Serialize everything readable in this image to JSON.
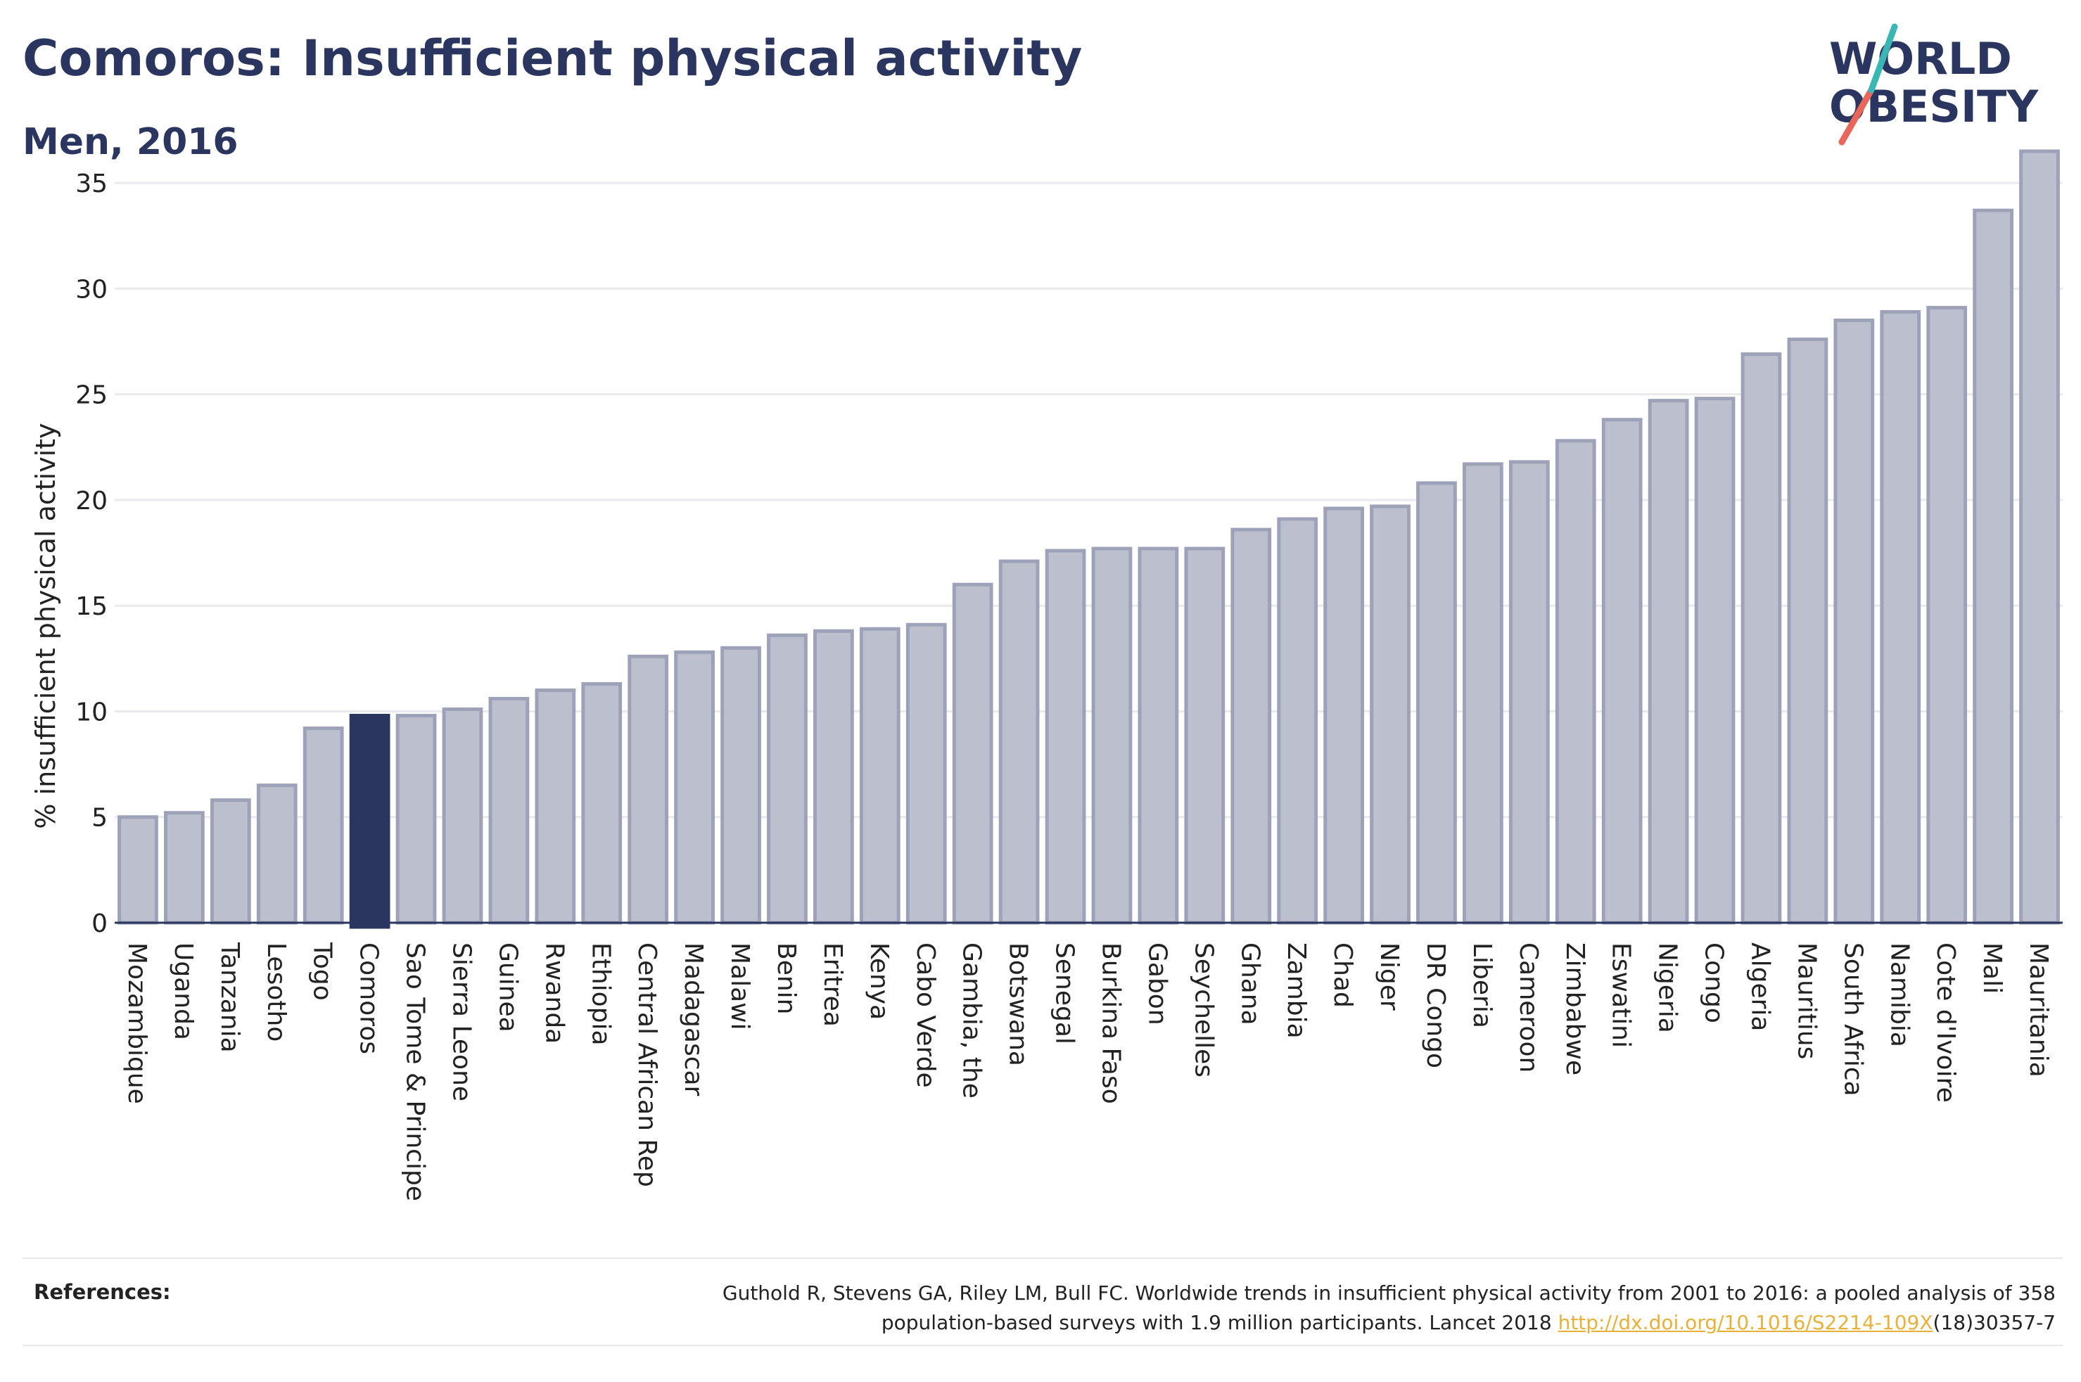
{
  "header": {
    "title": "Comoros: Insufficient physical activity",
    "subtitle": "Men, 2016"
  },
  "logo": {
    "line1": "WORLD",
    "line2": "OBESITY",
    "colors": {
      "text": "#2b3660",
      "slash_red": "#e8675a",
      "slash_teal": "#3ab6b5"
    }
  },
  "chart_data": {
    "type": "bar",
    "ylabel": "% insufficient physical activity",
    "xlabel": "",
    "ylim": [
      0,
      37
    ],
    "yticks": [
      0,
      5,
      10,
      15,
      20,
      25,
      30,
      35
    ],
    "grid": true,
    "highlight": "Comoros",
    "colors": {
      "bar": "#bcc0ce",
      "bar_border": "#9da2b8",
      "highlight": "#2b3660"
    },
    "categories": [
      "Mozambique",
      "Uganda",
      "Tanzania",
      "Lesotho",
      "Togo",
      "Comoros",
      "Sao Tome & Principe",
      "Sierra Leone",
      "Guinea",
      "Rwanda",
      "Ethiopia",
      "Central African Rep",
      "Madagascar",
      "Malawi",
      "Benin",
      "Eritrea",
      "Kenya",
      "Cabo Verde",
      "Gambia, the",
      "Botswana",
      "Senegal",
      "Burkina Faso",
      "Gabon",
      "Seychelles",
      "Ghana",
      "Zambia",
      "Chad",
      "Niger",
      "DR Congo",
      "Liberia",
      "Cameroon",
      "Zimbabwe",
      "Eswatini",
      "Nigeria",
      "Congo",
      "Algeria",
      "Mauritius",
      "South Africa",
      "Namibia",
      "Cote d'Ivoire",
      "Mali",
      "Mauritania"
    ],
    "values": [
      5.0,
      5.2,
      5.8,
      6.5,
      9.2,
      9.8,
      9.8,
      10.1,
      10.6,
      11.0,
      11.3,
      12.6,
      12.8,
      13.0,
      13.6,
      13.8,
      13.9,
      14.1,
      16.0,
      17.1,
      17.6,
      17.7,
      17.7,
      17.7,
      18.6,
      19.1,
      19.6,
      19.7,
      20.8,
      21.7,
      21.8,
      22.8,
      23.8,
      24.7,
      24.8,
      26.9,
      27.6,
      28.5,
      28.9,
      29.1,
      33.7,
      36.5
    ]
  },
  "references": {
    "label": "References:",
    "line1": "Guthold R, Stevens GA, Riley LM, Bull FC. Worldwide trends in insufficient physical activity from 2001 to 2016: a pooled analysis of 358",
    "line2_pre": "population-based surveys with 1.9 million participants. Lancet 2018 ",
    "link": "http://dx.doi.org/10.1016/S2214-109X",
    "line2_post": "(18)30357-7",
    "link_color": "#e8b23a"
  }
}
